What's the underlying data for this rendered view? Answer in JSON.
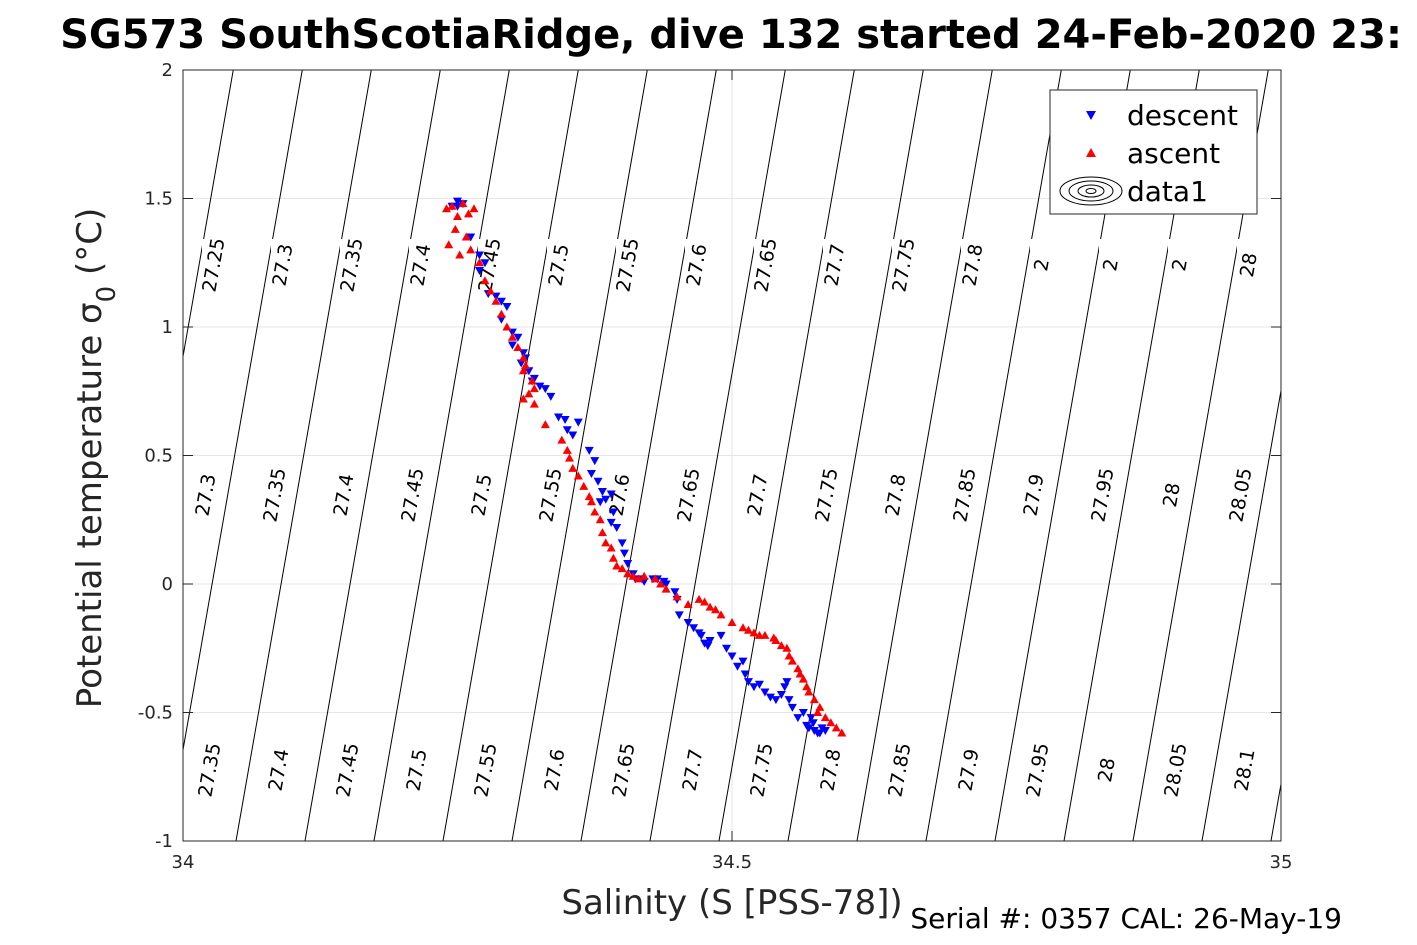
{
  "chart_data": {
    "type": "scatter",
    "title": "SG573 SouthScotiaRidge, dive 132 started 24-Feb-2020 23:",
    "xlabel": "Salinity (S [PSS-78])",
    "ylabel": "Potential temperature σ",
    "ylabel_sub": "0",
    "ylabel_unit": " (°C)",
    "xlim": [
      34,
      35
    ],
    "ylim": [
      -1,
      2
    ],
    "xticks": [
      34,
      34.5,
      35
    ],
    "xtick_labels": [
      "34",
      "34.5",
      "35"
    ],
    "yticks": [
      -1,
      -0.5,
      0,
      0.5,
      1,
      1.5,
      2
    ],
    "ytick_labels": [
      "-1",
      "-0.5",
      "0",
      "0.5",
      "1",
      "1.5",
      "2"
    ],
    "grid": true,
    "legend_position": "top-right",
    "series": [
      {
        "name": "descent",
        "marker": "triangle-down",
        "color": "#0000ff",
        "x": [
          34.245,
          34.25,
          34.255,
          34.25,
          34.262,
          34.27,
          34.275,
          34.27,
          34.278,
          34.285,
          34.29,
          34.295,
          34.29,
          34.3,
          34.305,
          34.3,
          34.31,
          34.312,
          34.308,
          34.315,
          34.32,
          34.318,
          34.325,
          34.33,
          34.335,
          34.342,
          34.348,
          34.35,
          34.355,
          34.36,
          34.37,
          34.375,
          34.372,
          34.378,
          34.382,
          34.38,
          34.385,
          34.39,
          34.392,
          34.39,
          34.395,
          34.4,
          34.402,
          34.405,
          34.41,
          34.412,
          34.418,
          34.42,
          34.428,
          34.432,
          34.438,
          34.44,
          34.448,
          34.45,
          34.452,
          34.46,
          34.465,
          34.47,
          34.472,
          34.475,
          34.478,
          34.48,
          34.49,
          34.495,
          34.5,
          34.505,
          34.51,
          34.512,
          34.515,
          34.52,
          34.525,
          34.53,
          34.535,
          34.54,
          34.545,
          34.548,
          34.55,
          34.552,
          34.555,
          34.56,
          34.565,
          34.568,
          34.57,
          34.574,
          34.575,
          34.572,
          34.578,
          34.58,
          34.582,
          34.585
        ],
        "y": [
          1.47,
          1.49,
          1.48,
          1.47,
          1.35,
          1.28,
          1.25,
          1.22,
          1.13,
          1.12,
          1.1,
          1.08,
          1.03,
          0.98,
          0.96,
          0.93,
          0.9,
          0.88,
          0.86,
          0.83,
          0.8,
          0.79,
          0.77,
          0.76,
          0.73,
          0.65,
          0.64,
          0.6,
          0.58,
          0.63,
          0.52,
          0.48,
          0.43,
          0.4,
          0.36,
          0.32,
          0.33,
          0.35,
          0.28,
          0.24,
          0.22,
          0.16,
          0.12,
          0.08,
          0.04,
          0.02,
          0.02,
          0.01,
          0.02,
          0.02,
          0.01,
          0.0,
          -0.03,
          -0.06,
          -0.12,
          -0.15,
          -0.17,
          -0.19,
          -0.2,
          -0.23,
          -0.24,
          -0.22,
          -0.2,
          -0.25,
          -0.28,
          -0.32,
          -0.3,
          -0.35,
          -0.38,
          -0.4,
          -0.39,
          -0.42,
          -0.44,
          -0.45,
          -0.43,
          -0.4,
          -0.38,
          -0.45,
          -0.48,
          -0.52,
          -0.5,
          -0.55,
          -0.56,
          -0.54,
          -0.57,
          -0.52,
          -0.58,
          -0.58,
          -0.56,
          -0.57
        ]
      },
      {
        "name": "ascent",
        "marker": "triangle-up",
        "color": "#ff0000",
        "x": [
          34.24,
          34.245,
          34.25,
          34.255,
          34.26,
          34.265,
          34.248,
          34.242,
          34.252,
          34.258,
          34.262,
          34.27,
          34.275,
          34.28,
          34.285,
          34.29,
          34.295,
          34.3,
          34.305,
          34.31,
          34.312,
          34.31,
          34.318,
          34.32,
          34.315,
          34.31,
          34.32,
          34.33,
          34.345,
          34.35,
          34.352,
          34.355,
          34.36,
          34.365,
          34.37,
          34.372,
          34.375,
          34.38,
          34.382,
          34.385,
          34.39,
          34.392,
          34.395,
          34.4,
          34.405,
          34.41,
          34.415,
          34.42,
          34.43,
          34.435,
          34.44,
          34.45,
          34.46,
          34.47,
          34.475,
          34.48,
          34.485,
          34.49,
          34.5,
          34.51,
          34.515,
          34.52,
          34.525,
          34.53,
          34.538,
          34.54,
          34.545,
          34.55,
          34.552,
          34.555,
          34.56,
          34.562,
          34.565,
          34.568,
          34.57,
          34.575,
          34.58,
          34.578,
          34.585,
          34.59,
          34.595,
          34.6
        ],
        "y": [
          1.46,
          1.47,
          1.43,
          1.48,
          1.44,
          1.46,
          1.38,
          1.32,
          1.28,
          1.35,
          1.3,
          1.25,
          1.18,
          1.14,
          1.1,
          1.05,
          1.0,
          0.96,
          0.92,
          0.88,
          0.85,
          0.83,
          0.79,
          0.76,
          0.74,
          0.72,
          0.7,
          0.62,
          0.56,
          0.52,
          0.49,
          0.45,
          0.42,
          0.38,
          0.34,
          0.32,
          0.28,
          0.25,
          0.2,
          0.16,
          0.14,
          0.1,
          0.07,
          0.06,
          0.04,
          0.03,
          0.02,
          0.03,
          0.02,
          0.0,
          -0.02,
          -0.05,
          -0.08,
          -0.06,
          -0.07,
          -0.09,
          -0.1,
          -0.12,
          -0.15,
          -0.17,
          -0.18,
          -0.19,
          -0.2,
          -0.2,
          -0.21,
          -0.22,
          -0.24,
          -0.25,
          -0.28,
          -0.3,
          -0.33,
          -0.35,
          -0.37,
          -0.4,
          -0.42,
          -0.45,
          -0.48,
          -0.5,
          -0.52,
          -0.54,
          -0.56,
          -0.58
        ]
      }
    ],
    "contour_legend_entry": "data1",
    "isopycnal_labels": {
      "upper": [
        "27.25",
        "27.3",
        "27.35",
        "27.4",
        "27.45",
        "27.5",
        "27.55",
        "27.6",
        "27.65",
        "27.7",
        "27.75",
        "27.8",
        "2",
        "2",
        "2",
        "28"
      ],
      "middle": [
        "27.3",
        "27.35",
        "27.4",
        "27.45",
        "27.5",
        "27.55",
        "27.6",
        "27.65",
        "27.7",
        "27.75",
        "27.8",
        "27.85",
        "27.9",
        "27.95",
        "28",
        "28.05"
      ],
      "lower": [
        "27.35",
        "27.4",
        "27.45",
        "27.5",
        "27.55",
        "27.6",
        "27.65",
        "27.7",
        "27.75",
        "27.8",
        "27.85",
        "27.9",
        "27.95",
        "28",
        "28.05",
        "28.1"
      ]
    }
  },
  "footer": {
    "serial": "Serial #: 0357  CAL: 26-May-19"
  }
}
